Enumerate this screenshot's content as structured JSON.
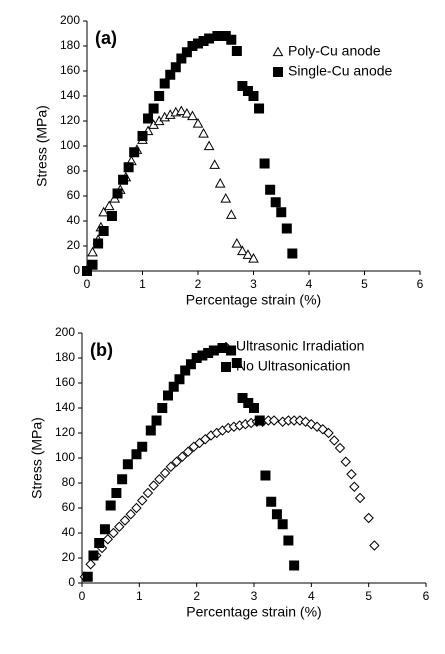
{
  "chart_data": [
    {
      "type": "scatter",
      "label": "(a)",
      "xlabel": "Percentage strain (%)",
      "ylabel": "Stress (MPa)",
      "xlim": [
        0,
        6
      ],
      "ylim": [
        0,
        200
      ],
      "xticks": [
        0,
        1,
        2,
        3,
        4,
        5,
        6
      ],
      "yticks": [
        0,
        20,
        40,
        60,
        80,
        100,
        120,
        140,
        160,
        180,
        200
      ],
      "series": [
        {
          "name": "Poly-Cu anode",
          "color": "#000000",
          "marker": "triangle-open",
          "x": [
            0.05,
            0.1,
            0.2,
            0.25,
            0.3,
            0.4,
            0.5,
            0.6,
            0.7,
            0.8,
            0.9,
            1.0,
            1.1,
            1.2,
            1.3,
            1.4,
            1.5,
            1.6,
            1.7,
            1.8,
            1.9,
            2.0,
            2.1,
            2.2,
            2.3,
            2.4,
            2.5,
            2.6,
            2.7,
            2.8,
            2.9,
            3.0
          ],
          "values": [
            5,
            15,
            25,
            35,
            47,
            52,
            58,
            65,
            75,
            88,
            97,
            105,
            112,
            117,
            120,
            123,
            125,
            127,
            128,
            126,
            124,
            118,
            110,
            100,
            85,
            70,
            58,
            45,
            22,
            16,
            13,
            10
          ]
        },
        {
          "name": "Single-Cu anode",
          "color": "#000000",
          "marker": "square",
          "x": [
            0,
            0.1,
            0.2,
            0.3,
            0.45,
            0.55,
            0.65,
            0.75,
            0.85,
            1.0,
            1.1,
            1.2,
            1.3,
            1.4,
            1.5,
            1.6,
            1.7,
            1.8,
            1.9,
            2.0,
            2.1,
            2.2,
            2.35,
            2.5,
            2.6,
            2.7,
            2.8,
            2.9,
            3.0,
            3.1,
            3.2,
            3.3,
            3.4,
            3.5,
            3.6,
            3.7
          ],
          "values": [
            0,
            5,
            22,
            32,
            44,
            62,
            73,
            83,
            95,
            108,
            122,
            130,
            140,
            150,
            157,
            163,
            170,
            175,
            180,
            182,
            184,
            186,
            188,
            188,
            185,
            176,
            148,
            144,
            140,
            130,
            86,
            65,
            55,
            47,
            34,
            14
          ]
        }
      ]
    },
    {
      "type": "scatter",
      "label": "(b)",
      "xlabel": "Percentage strain (%)",
      "ylabel": "Stress (MPa)",
      "xlim": [
        0,
        6
      ],
      "ylim": [
        0,
        200
      ],
      "xticks": [
        0,
        1,
        2,
        3,
        4,
        5,
        6
      ],
      "yticks": [
        0,
        20,
        40,
        60,
        80,
        100,
        120,
        140,
        160,
        180,
        200
      ],
      "series": [
        {
          "name": "Ultrasonic Irradiation",
          "color": "#000000",
          "marker": "diamond-open",
          "x": [
            0.05,
            0.15,
            0.25,
            0.35,
            0.45,
            0.55,
            0.65,
            0.75,
            0.85,
            0.95,
            1.05,
            1.15,
            1.25,
            1.35,
            1.45,
            1.55,
            1.65,
            1.75,
            1.85,
            1.95,
            2.05,
            2.15,
            2.25,
            2.35,
            2.45,
            2.55,
            2.65,
            2.75,
            2.85,
            2.95,
            3.05,
            3.15,
            3.25,
            3.35,
            3.5,
            3.6,
            3.7,
            3.8,
            3.9,
            4.0,
            4.1,
            4.2,
            4.3,
            4.4,
            4.5,
            4.6,
            4.7,
            4.75,
            4.85,
            5.0,
            5.1
          ],
          "values": [
            5,
            15,
            22,
            28,
            35,
            40,
            45,
            50,
            55,
            60,
            66,
            72,
            78,
            83,
            88,
            93,
            97,
            101,
            105,
            109,
            112,
            115,
            118,
            120,
            122,
            124,
            125,
            126,
            127,
            128,
            129,
            129,
            130,
            130,
            129,
            130,
            130,
            130,
            129,
            127,
            125,
            123,
            120,
            114,
            108,
            97,
            87,
            77,
            68,
            52,
            30
          ]
        },
        {
          "name": "No Ultrasonication",
          "color": "#000000",
          "marker": "square",
          "x": [
            0.1,
            0.2,
            0.3,
            0.4,
            0.5,
            0.6,
            0.7,
            0.8,
            0.95,
            1.05,
            1.2,
            1.3,
            1.4,
            1.5,
            1.6,
            1.7,
            1.8,
            1.9,
            2.0,
            2.1,
            2.2,
            2.3,
            2.45,
            2.6,
            2.7,
            2.8,
            2.9,
            3.0,
            3.1,
            3.2,
            3.3,
            3.4,
            3.5,
            3.6,
            3.7
          ],
          "values": [
            5,
            22,
            32,
            43,
            62,
            72,
            83,
            95,
            103,
            109,
            122,
            130,
            140,
            150,
            157,
            163,
            170,
            175,
            180,
            182,
            184,
            186,
            188,
            186,
            176,
            148,
            144,
            140,
            130,
            86,
            65,
            55,
            47,
            34,
            14
          ]
        }
      ]
    }
  ]
}
